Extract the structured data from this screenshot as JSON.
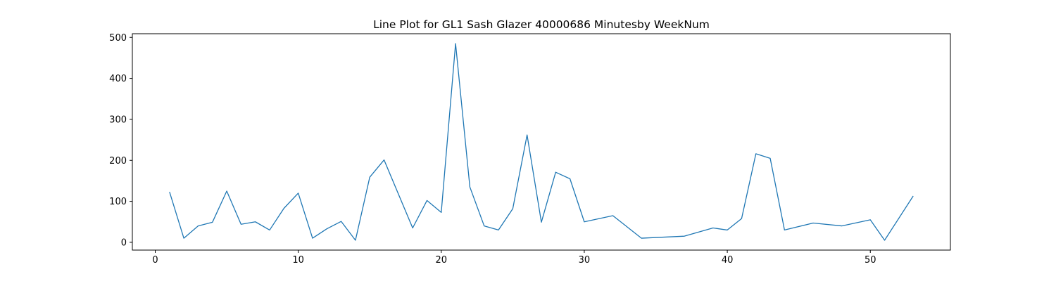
{
  "chart_data": {
    "type": "line",
    "title": "Line Plot for GL1 Sash Glazer 40000686 Minutesby WeekNum",
    "xlabel": "",
    "ylabel": "",
    "xlim": [
      -1.6,
      55.6
    ],
    "ylim": [
      -19,
      509
    ],
    "xticks": [
      0,
      10,
      20,
      30,
      40,
      50
    ],
    "yticks": [
      0,
      100,
      200,
      300,
      400,
      500
    ],
    "grid": false,
    "line_color": "#1f77b4",
    "series": [
      {
        "x": [
          1,
          2,
          3,
          4,
          5,
          6,
          7,
          8,
          9,
          10,
          11,
          12,
          13,
          14,
          15,
          16,
          18,
          19,
          20,
          21,
          22,
          23,
          24,
          25,
          26,
          27,
          28,
          29,
          30,
          32,
          34,
          37,
          39,
          40,
          41,
          42,
          43,
          44,
          46,
          48,
          50,
          51,
          53
        ],
        "y": [
          123,
          10,
          40,
          49,
          125,
          44,
          50,
          30,
          83,
          120,
          10,
          33,
          51,
          5,
          159,
          201,
          35,
          102,
          73,
          485,
          135,
          40,
          30,
          82,
          262,
          49,
          171,
          155,
          50,
          65,
          10,
          15,
          35,
          30,
          58,
          216,
          205,
          30,
          47,
          40,
          55,
          5,
          113
        ]
      }
    ]
  }
}
